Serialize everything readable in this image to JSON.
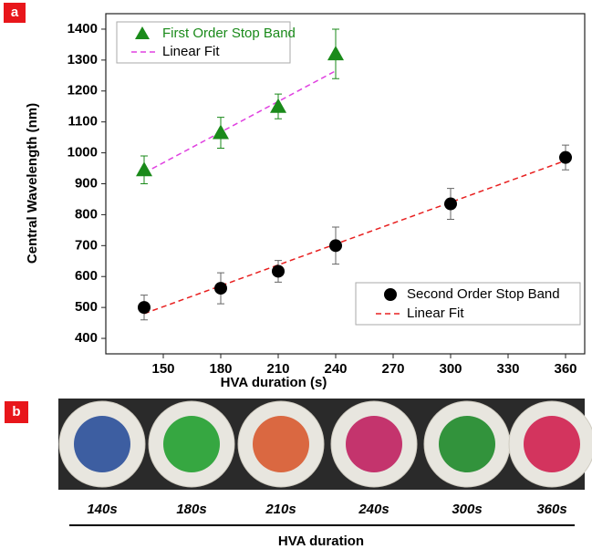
{
  "chart_data": {
    "type": "scatter",
    "panel_label": "a",
    "x_label": "HVA duration (s)",
    "y_label": "Central Wavelength (nm)",
    "xlim": [
      120,
      370
    ],
    "xticks": [
      150,
      180,
      210,
      240,
      270,
      300,
      330,
      360
    ],
    "ylim": [
      350,
      1450
    ],
    "yticks": [
      400,
      500,
      600,
      700,
      800,
      900,
      1000,
      1100,
      1200,
      1300,
      1400
    ],
    "series": [
      {
        "name": "First Order Stop Band",
        "marker": "triangle",
        "color": "#1a8a1a",
        "legend_text_color": "#1a8a1a",
        "x": [
          140,
          180,
          210,
          240
        ],
        "values": [
          945,
          1065,
          1150,
          1320
        ],
        "errors": [
          45,
          50,
          40,
          80
        ],
        "fit": {
          "name": "Linear Fit",
          "color": "#e040e0",
          "x": [
            140,
            240
          ],
          "values": [
            935,
            1265
          ]
        }
      },
      {
        "name": "Second Order Stop Band",
        "marker": "circle",
        "color": "#000000",
        "legend_text_color": "#000000",
        "x": [
          140,
          180,
          210,
          240,
          300,
          360
        ],
        "values": [
          500,
          562,
          617,
          700,
          835,
          985
        ],
        "errors": [
          40,
          50,
          35,
          60,
          50,
          40
        ],
        "fit": {
          "name": "Linear Fit",
          "color": "#e82020",
          "x": [
            140,
            360
          ],
          "values": [
            480,
            975
          ]
        }
      }
    ]
  },
  "panel_b": {
    "panel_label": "b",
    "axis_label": "HVA duration",
    "samples": [
      {
        "label": "140s",
        "color": "#2a4f9a"
      },
      {
        "label": "180s",
        "color": "#22a030"
      },
      {
        "label": "210s",
        "color": "#d85a30"
      },
      {
        "label": "240s",
        "color": "#c02060"
      },
      {
        "label": "300s",
        "color": "#1e8a2a"
      },
      {
        "label": "360s",
        "color": "#d02050"
      }
    ]
  }
}
